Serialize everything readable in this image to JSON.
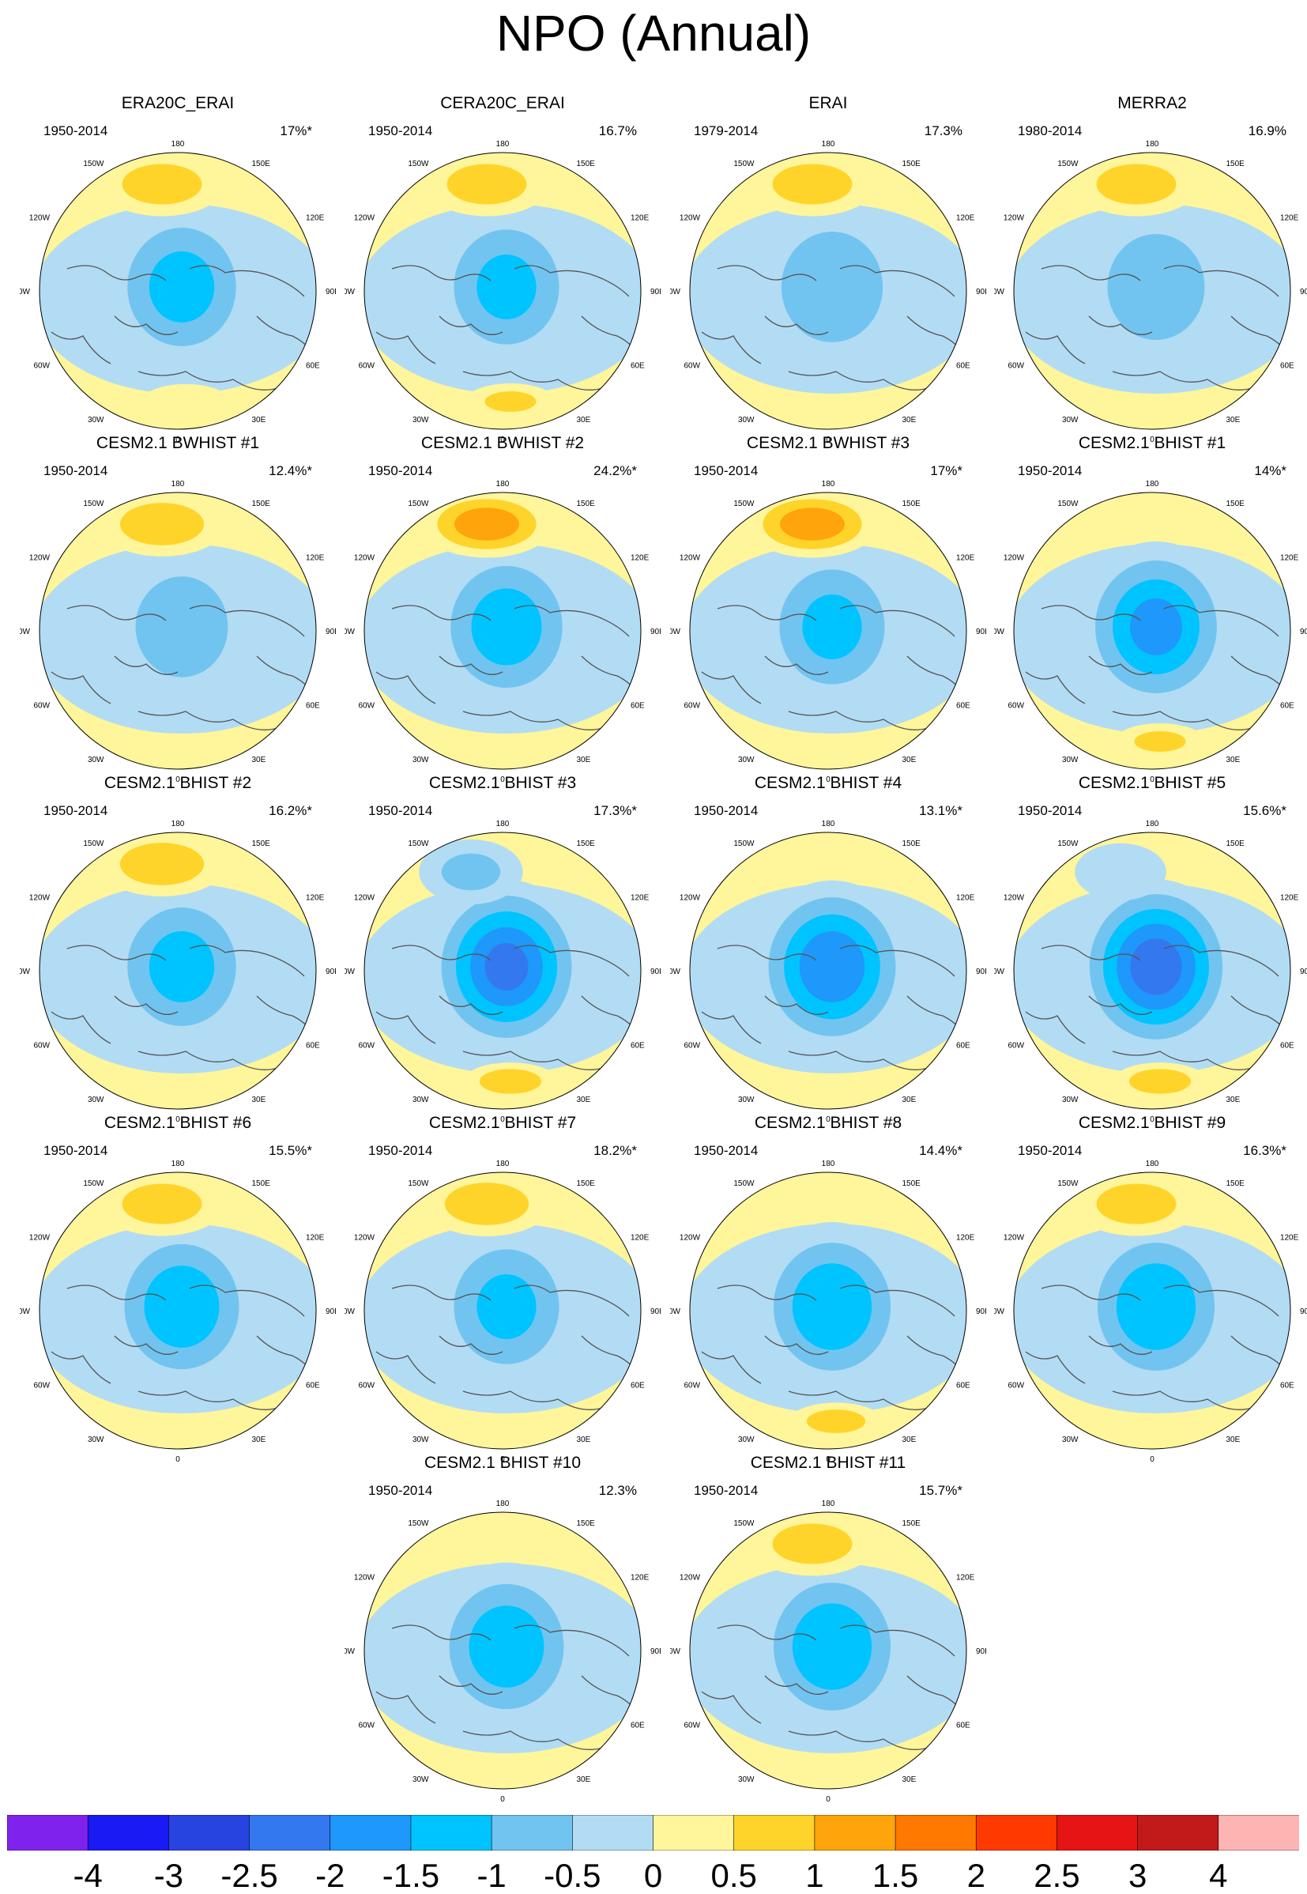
{
  "title": "NPO (Annual)",
  "longitude_labels": [
    "180",
    "150E",
    "120E",
    "90E",
    "60E",
    "30E",
    "0",
    "30W",
    "60W",
    "90W",
    "120W",
    "150W"
  ],
  "panels": [
    {
      "title": "ERA20C_ERAI",
      "period": "1950-2014",
      "variance": "17%*",
      "pattern": {
        "pac": 1.0,
        "arc": -1.4,
        "atl": 0.6
      }
    },
    {
      "title": "CERA20C_ERAI",
      "period": "1950-2014",
      "variance": "16.7%",
      "pattern": {
        "pac": 1.0,
        "arc": -1.3,
        "atl": 0.8
      }
    },
    {
      "title": "ERAI",
      "period": "1979-2014",
      "variance": "17.3%",
      "pattern": {
        "pac": 1.0,
        "arc": -1.2,
        "atl": 0.4
      }
    },
    {
      "title": "MERRA2",
      "period": "1980-2014",
      "variance": "16.9%",
      "pattern": {
        "pac": 1.0,
        "arc": -1.1,
        "atl": 0.3
      }
    },
    {
      "title": "CESM2.1 BWHIST #1",
      "period": "1950-2014",
      "variance": "12.4%*",
      "pattern": {
        "pac": 1.1,
        "arc": -1.0,
        "atl": 0.3
      }
    },
    {
      "title": "CESM2.1 BWHIST #2",
      "period": "1950-2014",
      "variance": "24.2%*",
      "pattern": {
        "pac": 1.6,
        "arc": -1.5,
        "atl": 0.3
      }
    },
    {
      "title": "CESM2.1 BWHIST #3",
      "period": "1950-2014",
      "variance": "17%*",
      "pattern": {
        "pac": 1.6,
        "arc": -1.3,
        "atl": 0.3
      }
    },
    {
      "title": "CESM2.1 BHIST #1",
      "period": "1950-2014",
      "variance": "14%*",
      "pattern": {
        "pac": 0.3,
        "arc": -1.9,
        "atl": 0.8
      }
    },
    {
      "title": "CESM2.1 BHIST #2",
      "period": "1950-2014",
      "variance": "16.2%*",
      "pattern": {
        "pac": 1.1,
        "arc": -1.4,
        "atl": 0.4
      }
    },
    {
      "title": "CESM2.1 BHIST #3",
      "period": "1950-2014",
      "variance": "17.3%*",
      "pattern": {
        "pac": -0.8,
        "arc": -2.4,
        "atl": 1.1
      }
    },
    {
      "title": "CESM2.1 BHIST #4",
      "period": "1950-2014",
      "variance": "13.1%*",
      "pattern": {
        "pac": 0.3,
        "arc": -2.2,
        "atl": 0.3
      }
    },
    {
      "title": "CESM2.1 BHIST #5",
      "period": "1950-2014",
      "variance": "15.6%*",
      "pattern": {
        "pac": -0.3,
        "arc": -2.6,
        "atl": 1.1
      }
    },
    {
      "title": "CESM2.1 BHIST #6",
      "period": "1950-2014",
      "variance": "15.5%*",
      "pattern": {
        "pac": 1.0,
        "arc": -1.6,
        "atl": 0.3
      }
    },
    {
      "title": "CESM2.1 BHIST #7",
      "period": "1950-2014",
      "variance": "18.2%*",
      "pattern": {
        "pac": 1.1,
        "arc": -1.3,
        "atl": 0.3
      }
    },
    {
      "title": "CESM2.1 BHIST #8",
      "period": "1950-2014",
      "variance": "14.4%*",
      "pattern": {
        "pac": 0.3,
        "arc": -1.7,
        "atl": 1.0
      }
    },
    {
      "title": "CESM2.1 BHIST #9",
      "period": "1950-2014",
      "variance": "16.3%*",
      "pattern": {
        "pac": 1.0,
        "arc": -1.7,
        "atl": 0.3
      }
    },
    {
      "title": "CESM2.1 BHIST #10",
      "period": "1950-2014",
      "variance": "12.3%",
      "pattern": {
        "pac": 0.3,
        "arc": -1.6,
        "atl": 0.3
      }
    },
    {
      "title": "CESM2.1 BHIST #11",
      "period": "1950-2014",
      "variance": "15.7%*",
      "pattern": {
        "pac": 1.0,
        "arc": -1.7,
        "atl": 0.3
      }
    }
  ],
  "colorbar": {
    "labels": [
      "-4",
      "-3",
      "-2.5",
      "-2",
      "-1.5",
      "-1",
      "-0.5",
      "0",
      "0.5",
      "1",
      "1.5",
      "2",
      "2.5",
      "3",
      "4"
    ],
    "colors": [
      "#8022ee",
      "#1a1af5",
      "#2844e0",
      "#3478f0",
      "#1e98fa",
      "#00c4ff",
      "#72c4f0",
      "#b2dcf4",
      "#fff59a",
      "#ffd42a",
      "#ffa40a",
      "#ff7800",
      "#ff3a00",
      "#e61414",
      "#c21a1a",
      "#ffb4b4"
    ],
    "thresholds": [
      -4,
      -3,
      -2.5,
      -2,
      -1.5,
      -1,
      -0.5,
      0,
      0.5,
      1,
      1.5,
      2,
      2.5,
      3,
      4
    ]
  }
}
